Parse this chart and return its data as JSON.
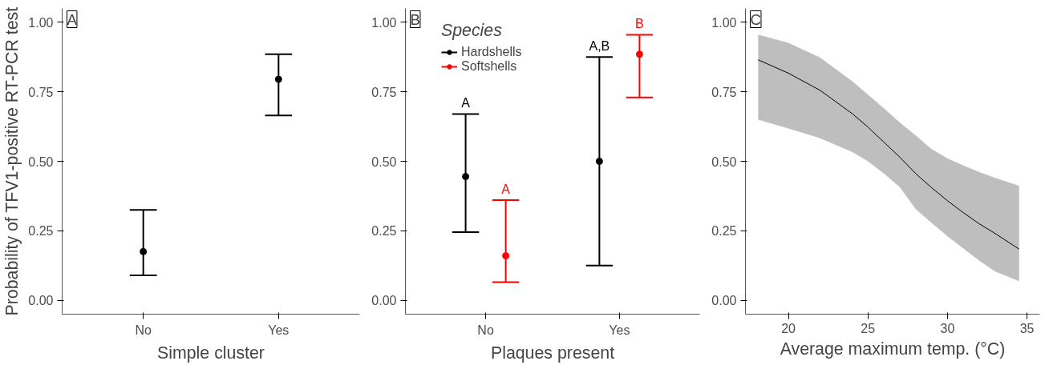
{
  "chart_data": [
    {
      "type": "scatter",
      "ylabel": "Probability of TFV1-positive RT-PCR test",
      "xlabel": "Simple cluster",
      "annotations": [
        "A"
      ],
      "categories": [
        "No",
        "Yes"
      ],
      "series": [
        {
          "color": "#000000",
          "values": [
            0.175,
            0.795
          ],
          "errors": [
            [
              0.09,
              0.325
            ],
            [
              0.665,
              0.885
            ]
          ]
        }
      ],
      "ylim": [
        -0.05,
        1.05
      ],
      "yticks": [
        {
          "value": 0,
          "label": "0.00"
        },
        {
          "value": 0.25,
          "label": "0.25"
        },
        {
          "value": 0.5,
          "label": "0.50"
        },
        {
          "value": 0.75,
          "label": "0.75"
        },
        {
          "value": 1,
          "label": "1.00"
        }
      ],
      "grid": false,
      "marker": "circle"
    },
    {
      "type": "scatter",
      "xlabel": "Plaques present",
      "legend_title": "Species",
      "legend": "top left",
      "categories": [
        "No",
        "Yes"
      ],
      "annotations": [
        "B",
        "A",
        "A",
        "A,B",
        "B"
      ],
      "series": [
        {
          "name": "Hardshells",
          "color": "#000000",
          "values": [
            0.445,
            0.5
          ],
          "errors": [
            [
              0.245,
              0.67
            ],
            [
              0.125,
              0.875
            ]
          ]
        },
        {
          "name": "Softshells",
          "color": "#ff0000",
          "values": [
            0.16,
            0.885
          ],
          "errors": [
            [
              0.065,
              0.36
            ],
            [
              0.73,
              0.955
            ]
          ]
        }
      ],
      "ylim": [
        -0.05,
        1.05
      ],
      "yticks": [
        {
          "value": 0,
          "label": "0.00"
        },
        {
          "value": 0.25,
          "label": "0.25"
        },
        {
          "value": 0.5,
          "label": "0.50"
        },
        {
          "value": 0.75,
          "label": "0.75"
        },
        {
          "value": 1,
          "label": "1.00"
        }
      ],
      "grid": false,
      "marker": "circle"
    },
    {
      "type": "line",
      "xlabel": "Average maximum temp. (°C)",
      "annotations": [
        "C"
      ],
      "series": [
        {
          "color": "#000000",
          "x": [
            18.1,
            20,
            22,
            24,
            25,
            26,
            27,
            28,
            29,
            30,
            31,
            32,
            33,
            34.5
          ],
          "values": [
            0.865,
            0.817,
            0.755,
            0.672,
            0.623,
            0.569,
            0.515,
            0.456,
            0.405,
            0.358,
            0.315,
            0.275,
            0.24,
            0.184
          ],
          "upper": [
            0.956,
            0.926,
            0.873,
            0.789,
            0.74,
            0.691,
            0.64,
            0.593,
            0.544,
            0.51,
            0.485,
            0.461,
            0.44,
            0.412
          ],
          "lower": [
            0.65,
            0.618,
            0.583,
            0.534,
            0.5,
            0.456,
            0.407,
            0.328,
            0.278,
            0.23,
            0.186,
            0.142,
            0.103,
            0.069
          ]
        }
      ],
      "xlim": [
        17.3,
        35.8
      ],
      "xticks": [
        20,
        25,
        30,
        35
      ],
      "ylim": [
        -0.05,
        1.05
      ],
      "yticks": [
        {
          "value": 0,
          "label": "0.00"
        },
        {
          "value": 0.25,
          "label": "0.25"
        },
        {
          "value": 0.5,
          "label": "0.50"
        },
        {
          "value": 0.75,
          "label": "0.75"
        },
        {
          "value": 1,
          "label": "1.00"
        }
      ],
      "grid": false,
      "marker": "none"
    }
  ]
}
